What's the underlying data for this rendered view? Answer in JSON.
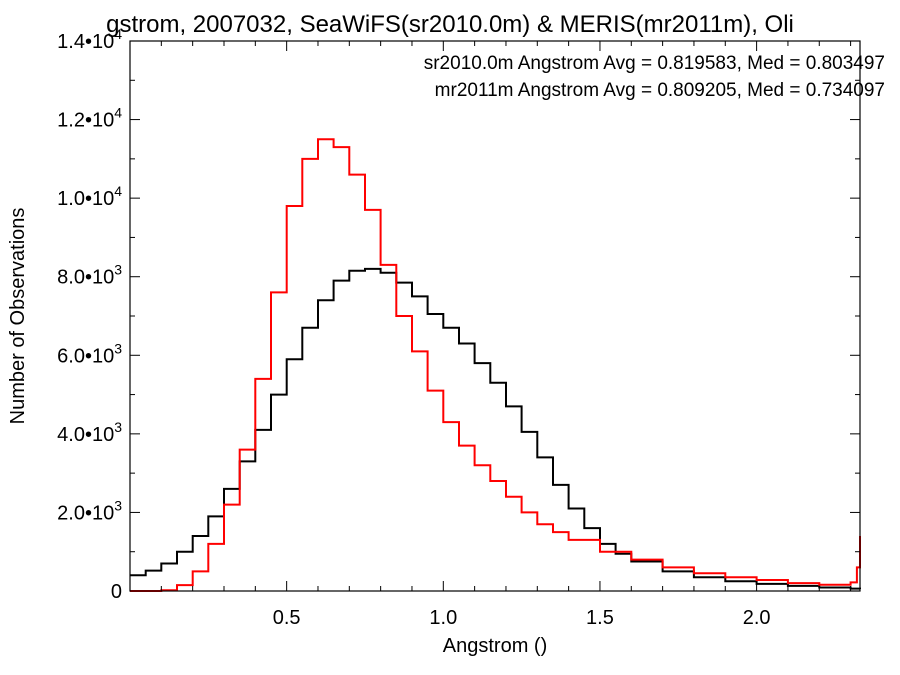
{
  "chart_data": {
    "type": "line",
    "title": "gstrom, 2007032, SeaWiFS(sr2010.0m) & MERIS(mr2011m), Oli",
    "xlabel": "Angstrom ()",
    "ylabel": "Number of Observations",
    "xlim": [
      0.0,
      2.33
    ],
    "ylim": [
      0,
      14000
    ],
    "x_ticks": [
      0.5,
      1.0,
      1.5,
      2.0
    ],
    "x_tick_labels": [
      "0.5",
      "1.0",
      "1.5",
      "2.0"
    ],
    "y_ticks": [
      0,
      2000,
      4000,
      6000,
      8000,
      10000,
      12000,
      14000
    ],
    "y_tick_labels": [
      {
        "mantissa": "0",
        "exp": ""
      },
      {
        "mantissa": "2.0•10",
        "exp": "3"
      },
      {
        "mantissa": "4.0•10",
        "exp": "3"
      },
      {
        "mantissa": "6.0•10",
        "exp": "3"
      },
      {
        "mantissa": "8.0•10",
        "exp": "3"
      },
      {
        "mantissa": "1.0•10",
        "exp": "4"
      },
      {
        "mantissa": "1.2•10",
        "exp": "4"
      },
      {
        "mantissa": "1.4•10",
        "exp": "4"
      }
    ],
    "annotations": [
      {
        "text": "sr2010.0m Angstrom Avg = 0.819583, Med = 0.803497",
        "color": "#000000"
      },
      {
        "text": "mr2011m Angstrom Avg = 0.809205, Med = 0.734097",
        "color": "#ff0000"
      }
    ],
    "series": [
      {
        "color": "#000000",
        "x": [
          0.0,
          0.05,
          0.1,
          0.15,
          0.2,
          0.25,
          0.3,
          0.35,
          0.4,
          0.45,
          0.5,
          0.55,
          0.6,
          0.65,
          0.7,
          0.75,
          0.8,
          0.85,
          0.9,
          0.95,
          1.0,
          1.05,
          1.1,
          1.15,
          1.2,
          1.25,
          1.3,
          1.35,
          1.4,
          1.45,
          1.5,
          1.55,
          1.6,
          1.7,
          1.8,
          1.9,
          2.0,
          2.1,
          2.2,
          2.3,
          2.33
        ],
        "y": [
          400,
          520,
          700,
          1000,
          1400,
          1900,
          2600,
          3300,
          4100,
          5000,
          5900,
          6700,
          7400,
          7900,
          8150,
          8200,
          8100,
          7850,
          7500,
          7050,
          6700,
          6300,
          5800,
          5300,
          4700,
          4050,
          3400,
          2700,
          2100,
          1600,
          1200,
          950,
          750,
          500,
          350,
          250,
          180,
          130,
          90,
          60,
          50
        ]
      },
      {
        "color": "#ff0000",
        "x": [
          0.0,
          0.1,
          0.15,
          0.2,
          0.25,
          0.3,
          0.35,
          0.4,
          0.45,
          0.5,
          0.55,
          0.6,
          0.65,
          0.7,
          0.75,
          0.8,
          0.85,
          0.9,
          0.95,
          1.0,
          1.05,
          1.1,
          1.15,
          1.2,
          1.25,
          1.3,
          1.35,
          1.4,
          1.5,
          1.6,
          1.7,
          1.8,
          1.9,
          2.0,
          2.1,
          2.2,
          2.3,
          2.32,
          2.33
        ],
        "y": [
          0,
          20,
          150,
          500,
          1200,
          2200,
          3600,
          5400,
          7600,
          9800,
          11000,
          11500,
          11300,
          10600,
          9700,
          8300,
          7000,
          6100,
          5100,
          4300,
          3700,
          3200,
          2800,
          2400,
          2000,
          1700,
          1500,
          1300,
          1000,
          800,
          600,
          450,
          350,
          280,
          200,
          160,
          220,
          600,
          1400
        ]
      }
    ]
  }
}
